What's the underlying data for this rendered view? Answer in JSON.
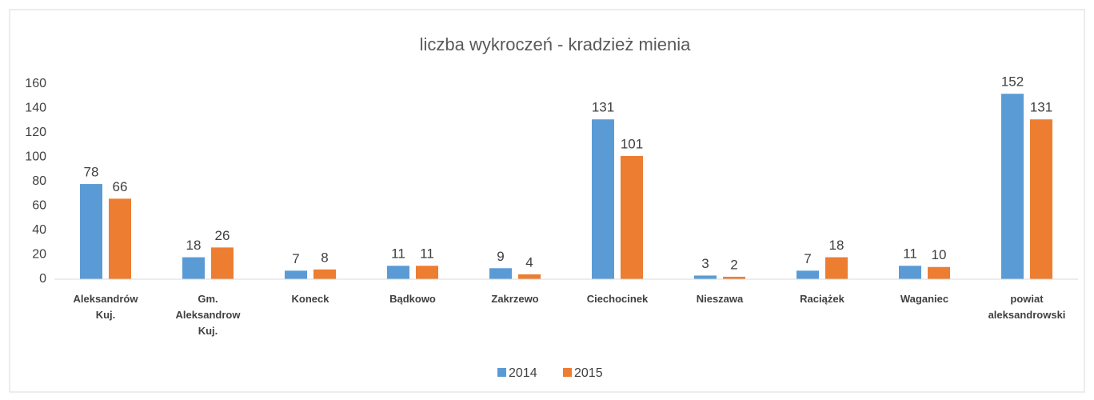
{
  "chart_data": {
    "type": "bar",
    "title": "liczba wykroczeń - kradzież mienia",
    "categories": [
      "Aleksandrów Kuj.",
      "Gm. Aleksandrow Kuj.",
      "Koneck",
      "Bądkowo",
      "Zakrzewo",
      "Ciechocinek",
      "Nieszawa",
      "Raciążek",
      "Waganiec",
      "powiat aleksandrowski"
    ],
    "series": [
      {
        "name": "2014",
        "color": "#5b9bd5",
        "values": [
          78,
          18,
          7,
          11,
          9,
          131,
          3,
          7,
          11,
          152
        ]
      },
      {
        "name": "2015",
        "color": "#ed7d31",
        "values": [
          66,
          26,
          8,
          11,
          4,
          101,
          2,
          18,
          10,
          131
        ]
      }
    ],
    "ylim": [
      0,
      160
    ],
    "yticks": [
      0,
      20,
      40,
      60,
      80,
      100,
      120,
      140,
      160
    ],
    "grid": false,
    "legend": "bottom"
  }
}
